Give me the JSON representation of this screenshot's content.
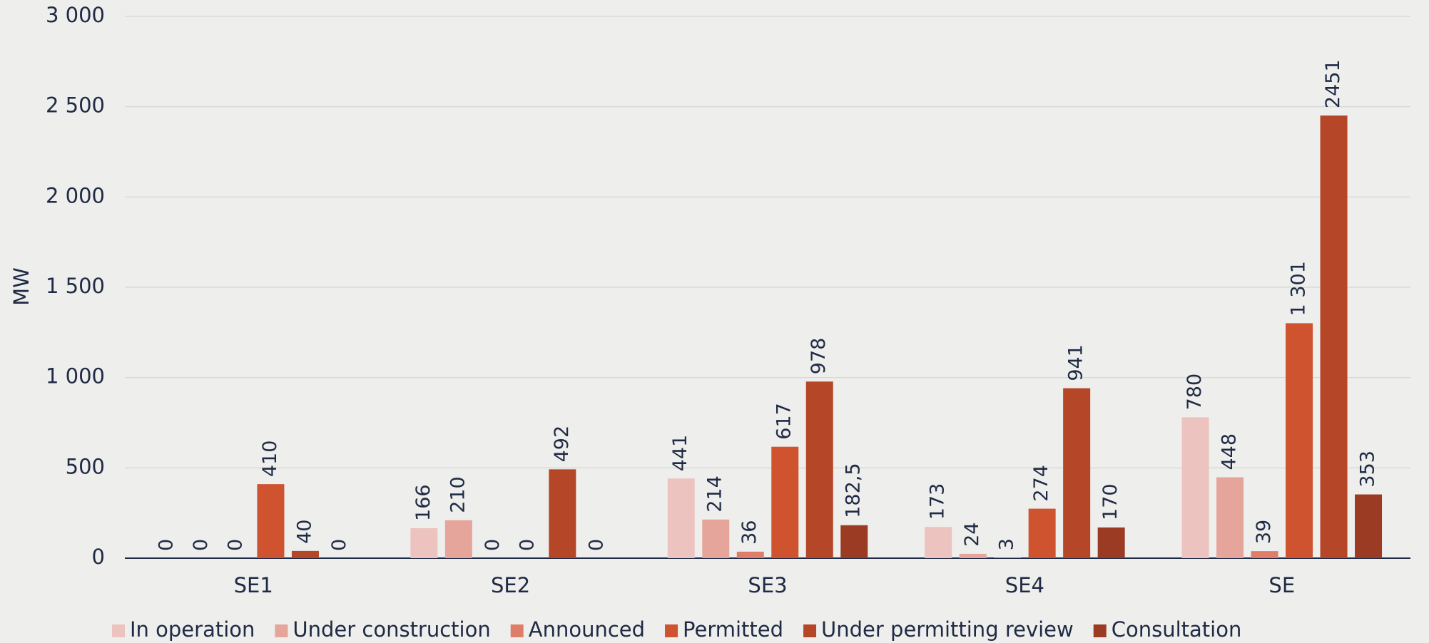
{
  "chart_data": {
    "type": "bar",
    "y_label": "MW",
    "categories": [
      "SE1",
      "SE2",
      "SE3",
      "SE4",
      "SE"
    ],
    "ylim": [
      0,
      3000
    ],
    "yticks": [
      0,
      500,
      {
        "value": 1000,
        "label": "1 000"
      },
      {
        "value": 1500,
        "label": "1 500"
      },
      {
        "value": 2000,
        "label": "2 000"
      },
      {
        "value": 2500,
        "label": "2 500"
      },
      {
        "value": 3000,
        "label": "3 000"
      }
    ],
    "grid": true,
    "legend": "bottom",
    "series": [
      {
        "name": "In operation",
        "color": "#ecc3bf",
        "values": [
          0,
          166,
          441,
          173,
          780
        ]
      },
      {
        "name": "Under construction",
        "color": "#e5a59a",
        "values": [
          0,
          210,
          214,
          24,
          448
        ]
      },
      {
        "name": "Announced",
        "color": "#df7e68",
        "values": [
          0,
          0,
          36,
          3,
          39
        ]
      },
      {
        "name": "Permitted",
        "color": "#cf532f",
        "values": [
          410,
          0,
          617,
          274,
          1301
        ],
        "value_labels": [
          "410",
          "0",
          "617",
          "274",
          "1 301"
        ]
      },
      {
        "name": "Under permitting review",
        "color": "#b54628",
        "values": [
          40,
          492,
          978,
          941,
          2451
        ]
      },
      {
        "name": "Consultation",
        "color": "#9c3b23",
        "values": [
          0,
          0,
          182.5,
          170,
          353
        ],
        "value_labels": [
          "0",
          "0",
          "182,5",
          "170",
          "353"
        ]
      }
    ]
  }
}
